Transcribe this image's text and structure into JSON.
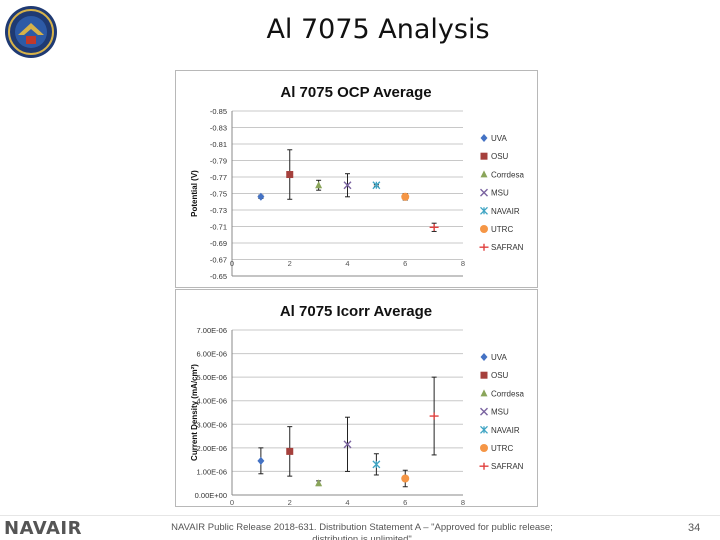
{
  "slide": {
    "title": "Al 7075 Analysis",
    "footer_logo": "NAVAIR",
    "footer_text": "NAVAIR Public Release 2018-631. Distribution Statement A – \"Approved for public release; distribution is unlimited\"",
    "page_number": "34"
  },
  "labs": [
    "UVA",
    "OSU",
    "Corrdesa",
    "MSU",
    "NAVAIR",
    "UTRC",
    "SAFRAN"
  ],
  "chart_data": [
    {
      "type": "scatter",
      "title": "Al 7075 OCP Average",
      "ylabel": "Potential (V)",
      "xlabel": "",
      "xlim": [
        0,
        8
      ],
      "ylim": [
        -0.85,
        -0.65
      ],
      "y_inverted": true,
      "x_ticks": [
        "0",
        "2",
        "4",
        "6",
        "8"
      ],
      "y_ticks": [
        "-0.85",
        "-0.83",
        "-0.81",
        "-0.79",
        "-0.77",
        "-0.75",
        "-0.73",
        "-0.71",
        "-0.69",
        "-0.67",
        "-0.65"
      ],
      "legend_position": "right",
      "grid": true,
      "series": [
        {
          "name": "UVA",
          "marker": "diamond",
          "color": "#4472C4",
          "x": 1,
          "y": -0.746,
          "err": 0.002
        },
        {
          "name": "OSU",
          "marker": "square",
          "color": "#A5403C",
          "x": 2,
          "y": -0.773,
          "err": 0.03
        },
        {
          "name": "Corrdesa",
          "marker": "triangle",
          "color": "#8AA55A",
          "x": 3,
          "y": -0.76,
          "err": 0.006
        },
        {
          "name": "MSU",
          "marker": "x",
          "color": "#7A63A0",
          "x": 4,
          "y": -0.76,
          "err": 0.014
        },
        {
          "name": "NAVAIR",
          "marker": "star",
          "color": "#3FA4C3",
          "x": 5,
          "y": -0.76,
          "err": 0.001
        },
        {
          "name": "UTRC",
          "marker": "circle",
          "color": "#F59646",
          "x": 6,
          "y": -0.746,
          "err": 0.004
        },
        {
          "name": "SAFRAN",
          "marker": "plus",
          "color": "#E0403E",
          "x": 7,
          "y": -0.709,
          "err": 0.005
        }
      ]
    },
    {
      "type": "scatter",
      "title": "Al 7075 Icorr Average",
      "ylabel": "Current Density (mA/cm²)",
      "xlabel": "",
      "xlim": [
        0,
        8
      ],
      "ylim": [
        0,
        7e-06
      ],
      "x_ticks": [
        "0",
        "2",
        "4",
        "6",
        "8"
      ],
      "y_ticks": [
        "0.00E+00",
        "1.00E-06",
        "2.00E-06",
        "3.00E-06",
        "4.00E-06",
        "5.00E-06",
        "6.00E-06",
        "7.00E-06"
      ],
      "legend_position": "right",
      "grid": true,
      "series": [
        {
          "name": "UVA",
          "marker": "diamond",
          "color": "#4472C4",
          "x": 1,
          "y": 1.45e-06,
          "err": 5.5e-07
        },
        {
          "name": "OSU",
          "marker": "square",
          "color": "#A5403C",
          "x": 2,
          "y": 1.85e-06,
          "err": 1.05e-06
        },
        {
          "name": "Corrdesa",
          "marker": "triangle",
          "color": "#8AA55A",
          "x": 3,
          "y": 5e-07,
          "err": 1e-07
        },
        {
          "name": "MSU",
          "marker": "x",
          "color": "#7A63A0",
          "x": 4,
          "y": 2.15e-06,
          "err": 1.15e-06
        },
        {
          "name": "NAVAIR",
          "marker": "star",
          "color": "#3FA4C3",
          "x": 5,
          "y": 1.3e-06,
          "err": 4.5e-07
        },
        {
          "name": "UTRC",
          "marker": "circle",
          "color": "#F59646",
          "x": 6,
          "y": 7e-07,
          "err": 3.5e-07
        },
        {
          "name": "SAFRAN",
          "marker": "plus",
          "color": "#E0403E",
          "x": 7,
          "y": 3.35e-06,
          "err": 1.65e-06
        }
      ]
    }
  ]
}
